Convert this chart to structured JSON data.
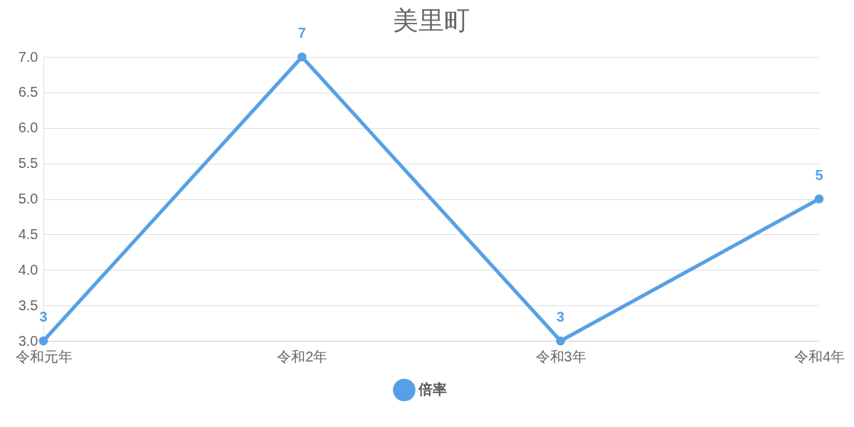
{
  "chart_data": {
    "type": "line",
    "title": "美里町",
    "categories": [
      "令和元年",
      "令和2年",
      "令和3年",
      "令和4年"
    ],
    "series": [
      {
        "name": "倍率",
        "color": "#57a0e5",
        "values": [
          3,
          7,
          3,
          5
        ]
      }
    ],
    "ylim": [
      3,
      7
    ],
    "yticks": [
      {
        "value": 3,
        "label": "3.0"
      },
      {
        "value": 3.5,
        "label": "3.5"
      },
      {
        "value": 4,
        "label": "4.0"
      },
      {
        "value": 4.5,
        "label": "4.5"
      },
      {
        "value": 5,
        "label": "5.0"
      },
      {
        "value": 5.5,
        "label": "5.5"
      },
      {
        "value": 6,
        "label": "6.0"
      },
      {
        "value": 6.5,
        "label": "6.5"
      },
      {
        "value": 7,
        "label": "7.0"
      }
    ],
    "grid": "y",
    "legend": "bottom",
    "marker": "circle",
    "line_style": "solid",
    "data_labels": true
  }
}
